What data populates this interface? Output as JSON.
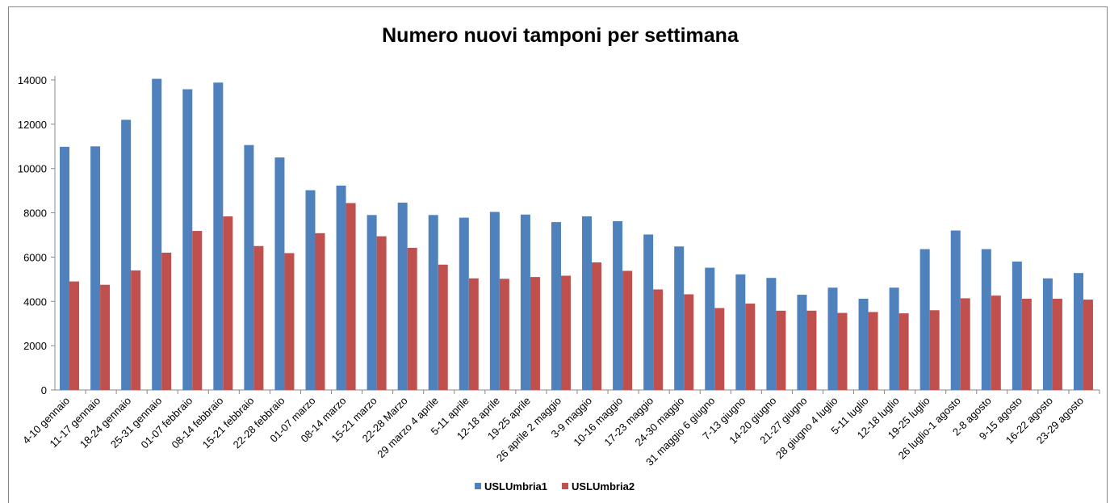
{
  "chart_data": {
    "type": "bar",
    "title": "Numero nuovi tamponi per settimana",
    "categories": [
      "4-10 gennaio",
      "11-17 gennaio",
      "18-24 gennaio",
      "25-31 gennaio",
      "01-07 febbraio",
      "08-14 febbraio",
      "15-21 febbraio",
      "22-28 febbraio",
      "01-07 marzo",
      "08-14 marzo",
      "15-21 marzo",
      "22-28 Marzo",
      "29 marzo 4 aprile",
      "5-11 aprile",
      "12-18 aprile",
      "19-25 aprile",
      "26 aprile 2 maggio",
      "3-9 maggio",
      "10-16 maggio",
      "17-23 maggio",
      "24-30 maggio",
      "31 maggio 6 giugno",
      "7-13 giugno",
      "14-20 giugno",
      "21-27 giugno",
      "28 giugno  4 luglio",
      "5-11 luglio",
      "12-18 luglio",
      "19-25 luglio",
      "26 luglio-1 agosto",
      "2-8 agosto",
      "9-15 agosto",
      "16-22 agosto",
      "23-29 agosto"
    ],
    "series": [
      {
        "name": "USLUmbria1",
        "color": "#4f81bd",
        "values": [
          10980,
          11000,
          12200,
          14050,
          13580,
          13880,
          11060,
          10500,
          9020,
          9230,
          7900,
          8460,
          7900,
          7780,
          8040,
          7920,
          7580,
          7840,
          7620,
          7020,
          6480,
          5520,
          5220,
          5060,
          4300,
          4620,
          4120,
          4620,
          6360,
          7200,
          6360,
          5800,
          5040,
          5280
        ]
      },
      {
        "name": "USLUmbria2",
        "color": "#c0504d",
        "values": [
          4900,
          4750,
          5400,
          6200,
          7180,
          7840,
          6500,
          6180,
          7080,
          8440,
          6940,
          6420,
          5660,
          5040,
          5020,
          5100,
          5160,
          5760,
          5380,
          4540,
          4320,
          3700,
          3900,
          3580,
          3580,
          3480,
          3520,
          3460,
          3600,
          4140,
          4260,
          4120,
          4120,
          4080
        ]
      }
    ],
    "ylim": [
      0,
      14000
    ],
    "yticks": [
      0,
      2000,
      4000,
      6000,
      8000,
      10000,
      12000,
      14000
    ],
    "legend": "bottom"
  }
}
